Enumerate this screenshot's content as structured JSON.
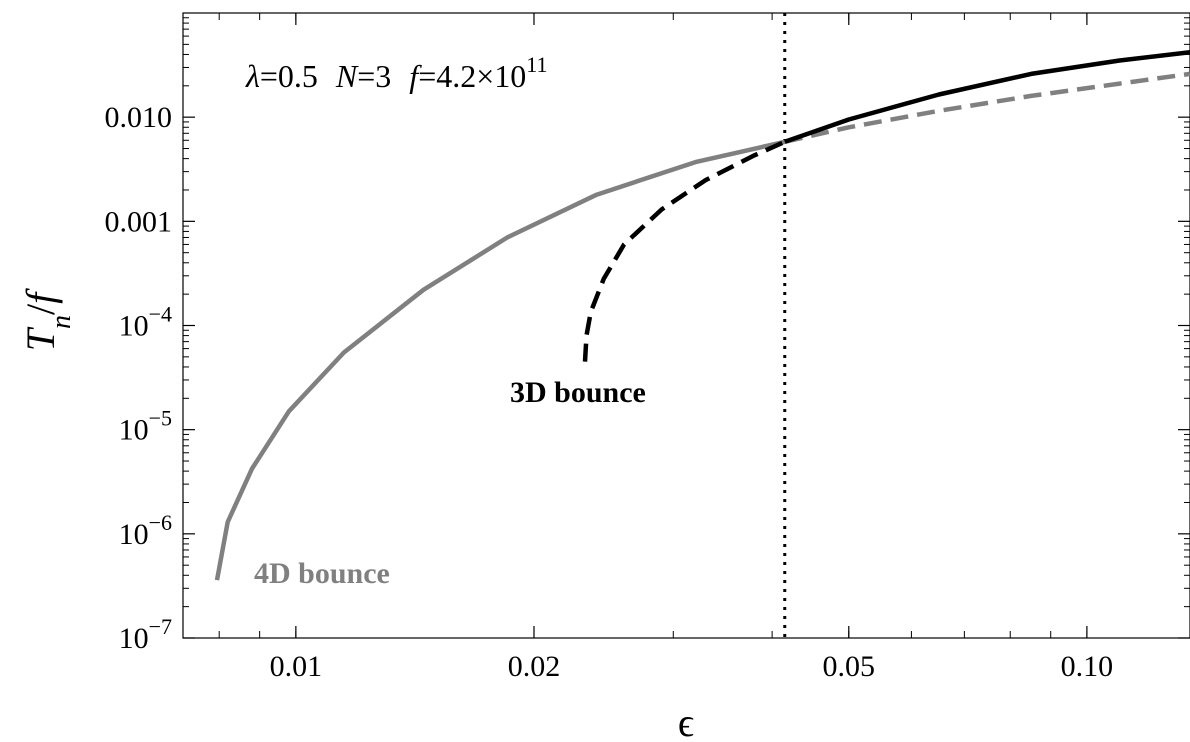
{
  "chart_data": {
    "type": "line",
    "xlabel": "ϵ",
    "ylabel": "T_n/f",
    "xscale": "log",
    "yscale": "log",
    "xlim": [
      0.0072,
      0.135
    ],
    "ylim": [
      1e-07,
      0.1
    ],
    "x_ticks": [
      {
        "value": 0.01,
        "label": "0.01"
      },
      {
        "value": 0.02,
        "label": "0.02"
      },
      {
        "value": 0.05,
        "label": "0.05"
      },
      {
        "value": 0.1,
        "label": "0.10"
      }
    ],
    "y_ticks": [
      {
        "value": 1e-07,
        "base": "10",
        "exp": "−7"
      },
      {
        "value": 1e-06,
        "base": "10",
        "exp": "−6"
      },
      {
        "value": 1e-05,
        "base": "10",
        "exp": "−5"
      },
      {
        "value": 0.0001,
        "base": "10",
        "exp": "−4"
      },
      {
        "value": 0.001,
        "label": "0.001"
      },
      {
        "value": 0.01,
        "label": "0.010"
      }
    ],
    "parameters": {
      "lambda_sym": "λ",
      "lambda_val": "=0.5",
      "N_sym": "N",
      "N_val": "=3",
      "f_sym": "f",
      "f_val": "=4.2×10",
      "f_exp": "11"
    },
    "annotations": {
      "bounce_3d": "3D bounce",
      "bounce_4d": "4D bounce"
    },
    "vline_x": 0.0415,
    "series": [
      {
        "key": "4d_solid",
        "color": "#808080",
        "dash": "solid",
        "points": [
          [
            0.00795,
            3.6e-07
          ],
          [
            0.0082,
            1.3e-06
          ],
          [
            0.0088,
            4.2e-06
          ],
          [
            0.0098,
            1.5e-05
          ],
          [
            0.0115,
            5.5e-05
          ],
          [
            0.0145,
            0.00022
          ],
          [
            0.0185,
            0.0007
          ],
          [
            0.024,
            0.0018
          ],
          [
            0.032,
            0.0037
          ],
          [
            0.0415,
            0.0058
          ]
        ]
      },
      {
        "key": "4d_dashed",
        "color": "#808080",
        "dash": "dashed",
        "points": [
          [
            0.0415,
            0.0058
          ],
          [
            0.05,
            0.008
          ],
          [
            0.065,
            0.0115
          ],
          [
            0.085,
            0.016
          ],
          [
            0.11,
            0.021
          ],
          [
            0.135,
            0.026
          ]
        ]
      },
      {
        "key": "3d_dashed",
        "color": "#000000",
        "dash": "dashed",
        "points": [
          [
            0.0232,
            4.5e-05
          ],
          [
            0.0233,
            8e-05
          ],
          [
            0.0236,
            0.000135
          ],
          [
            0.0245,
            0.00028
          ],
          [
            0.026,
            0.0006
          ],
          [
            0.029,
            0.0013
          ],
          [
            0.033,
            0.0025
          ],
          [
            0.038,
            0.0043
          ],
          [
            0.0415,
            0.0058
          ]
        ]
      },
      {
        "key": "3d_solid",
        "color": "#000000",
        "dash": "solid",
        "points": [
          [
            0.0415,
            0.0058
          ],
          [
            0.05,
            0.0095
          ],
          [
            0.065,
            0.0165
          ],
          [
            0.085,
            0.026
          ],
          [
            0.11,
            0.035
          ],
          [
            0.135,
            0.042
          ]
        ]
      }
    ]
  }
}
